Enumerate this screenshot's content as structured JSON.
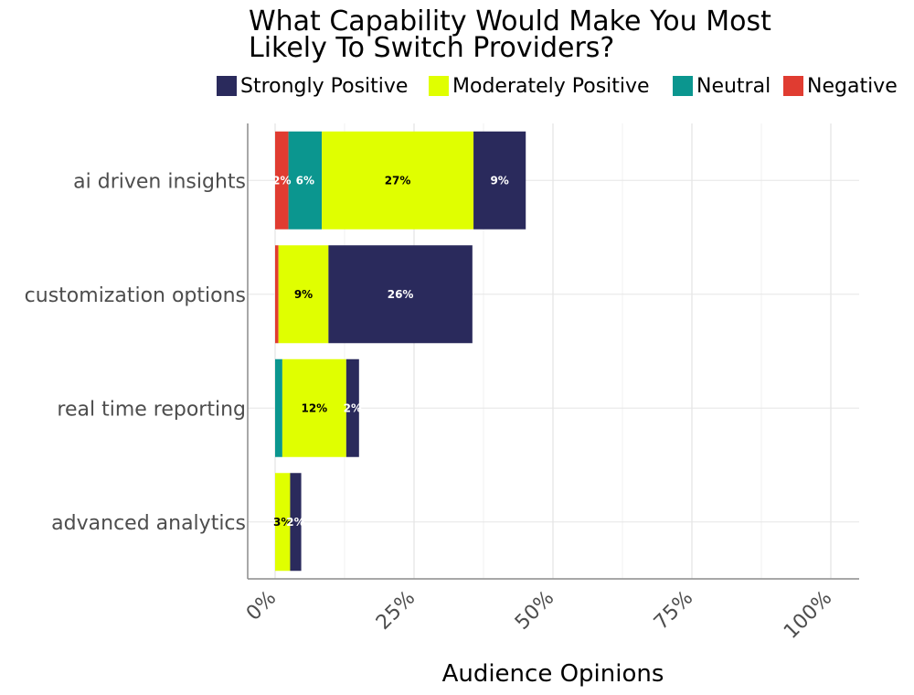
{
  "chart_data": {
    "type": "bar",
    "orientation": "horizontal",
    "stacked": true,
    "title": "What Capability Would Make You Most Likely To Switch Providers?",
    "title_lines": [
      "What Capability Would Make You Most",
      "Likely To Switch Providers?"
    ],
    "xlabel": "Audience Opinions",
    "ylabel": "",
    "xlim": [
      0,
      1
    ],
    "x_ticks": [
      {
        "value": 0,
        "label": "0%"
      },
      {
        "value": 0.25,
        "label": "25%"
      },
      {
        "value": 0.5,
        "label": "50%"
      },
      {
        "value": 0.75,
        "label": "75%"
      },
      {
        "value": 1.0,
        "label": "100%"
      }
    ],
    "grid": true,
    "legend_position": "top",
    "categories": [
      "ai driven insights",
      "customization options",
      "real time reporting",
      "advanced analytics"
    ],
    "series": [
      {
        "name": "Negative",
        "color": "#e03c31",
        "values": [
          0.024,
          0.006,
          0.0,
          0.0
        ],
        "labels": [
          "2%",
          "",
          "",
          ""
        ],
        "label_color": "#ffffff"
      },
      {
        "name": "Neutral",
        "color": "#0b968f",
        "values": [
          0.06,
          0.0,
          0.013,
          0.0
        ],
        "labels": [
          "6%",
          "",
          "",
          ""
        ],
        "label_color": "#ffffff"
      },
      {
        "name": "Moderately Positive",
        "color": "#e0ff00",
        "values": [
          0.273,
          0.09,
          0.115,
          0.027
        ],
        "labels": [
          "27%",
          "9%",
          "12%",
          "3%"
        ],
        "label_color": "#000000"
      },
      {
        "name": "Strongly Positive",
        "color": "#2a2a5c",
        "values": [
          0.094,
          0.259,
          0.023,
          0.02
        ],
        "labels": [
          "9%",
          "26%",
          "2%",
          "2%"
        ],
        "label_color": "#ffffff"
      }
    ],
    "stack_order": [
      "Negative",
      "Neutral",
      "Moderately Positive",
      "Strongly Positive"
    ],
    "legend_order": [
      "Strongly Positive",
      "Moderately Positive",
      "Neutral",
      "Negative"
    ]
  }
}
